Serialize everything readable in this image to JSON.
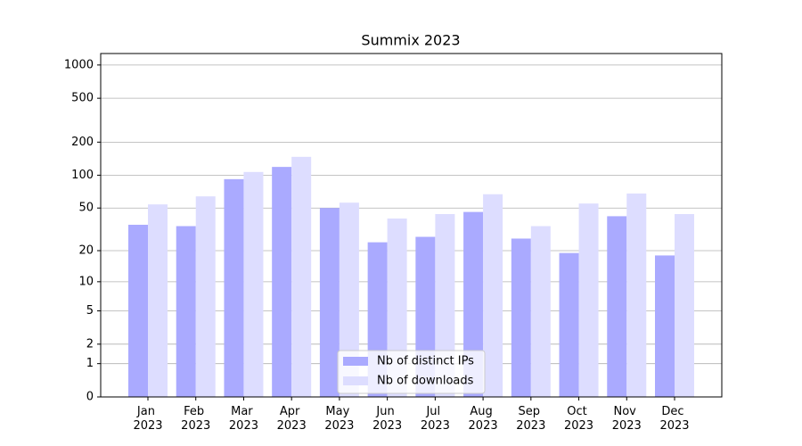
{
  "chart_data": {
    "type": "bar",
    "title": "Summix 2023",
    "categories": [
      "Jan 2023",
      "Feb 2023",
      "Mar 2023",
      "Apr 2023",
      "May 2023",
      "Jun 2023",
      "Jul 2023",
      "Aug 2023",
      "Sep 2023",
      "Oct 2023",
      "Nov 2023",
      "Dec 2023"
    ],
    "series": [
      {
        "name": "Nb of distinct IPs",
        "color": "#aaaaff",
        "values": [
          35,
          34,
          92,
          119,
          50,
          24,
          27,
          46,
          26,
          19,
          42,
          18
        ]
      },
      {
        "name": "Nb of downloads",
        "color": "#ddddff",
        "values": [
          54,
          64,
          107,
          147,
          56,
          40,
          44,
          67,
          34,
          55,
          68,
          44
        ]
      }
    ],
    "yscale": "log1p",
    "ylim": [
      0,
      1270
    ],
    "yticks": [
      0,
      1,
      2,
      5,
      10,
      20,
      50,
      100,
      200,
      500,
      1000
    ],
    "grid": true,
    "legend": "lower center"
  }
}
